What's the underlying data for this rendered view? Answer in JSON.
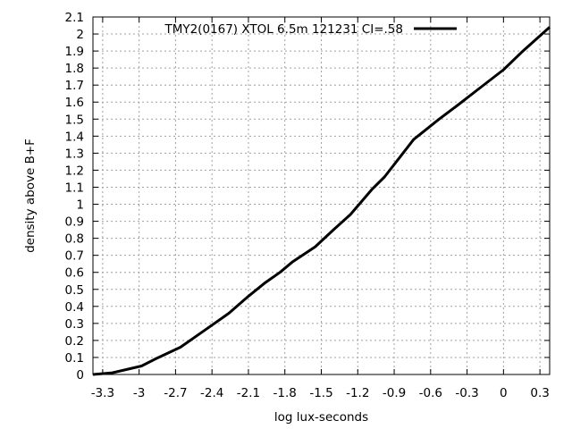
{
  "chart_data": {
    "type": "line",
    "title": "",
    "xlabel": "log lux-seconds",
    "ylabel": "density above B+F",
    "xlim": [
      -3.38,
      0.38
    ],
    "ylim": [
      0,
      2.1
    ],
    "x_ticks": [
      -3.3,
      -3,
      -2.7,
      -2.4,
      -2.1,
      -1.8,
      -1.5,
      -1.2,
      -0.9,
      -0.6,
      -0.3,
      0,
      0.3
    ],
    "x_tick_labels": [
      "-3.3",
      "-3",
      "-2.7",
      "-2.4",
      "-2.1",
      "-1.8",
      "-1.5",
      "-1.2",
      "-0.9",
      "-0.6",
      "-0.3",
      "0",
      "0.3"
    ],
    "y_ticks": [
      0,
      0.1,
      0.2,
      0.3,
      0.4,
      0.5,
      0.6,
      0.7,
      0.8,
      0.9,
      1,
      1.1,
      1.2,
      1.3,
      1.4,
      1.5,
      1.6,
      1.7,
      1.8,
      1.9,
      2,
      2.1
    ],
    "y_tick_labels": [
      "0",
      "0.1",
      "0.2",
      "0.3",
      "0.4",
      "0.5",
      "0.6",
      "0.7",
      "0.8",
      "0.9",
      "1",
      "1.1",
      "1.2",
      "1.3",
      "1.4",
      "1.5",
      "1.6",
      "1.7",
      "1.8",
      "1.9",
      "2",
      "2.1"
    ],
    "grid": true,
    "grid_style": "dotted",
    "legend_position": "top",
    "series": [
      {
        "name": "TMY2(0167) XTOL 6.5m 121231 CI=.58",
        "color": "#000000",
        "x": [
          -3.38,
          -3.22,
          -2.98,
          -2.87,
          -2.66,
          -2.42,
          -2.26,
          -2.1,
          -1.96,
          -1.84,
          -1.74,
          -1.55,
          -1.4,
          -1.26,
          -1.08,
          -0.98,
          -0.86,
          -0.74,
          -0.53,
          -0.38,
          -0.2,
          0.0,
          0.16,
          0.38
        ],
        "y": [
          0.0,
          0.01,
          0.05,
          0.09,
          0.16,
          0.28,
          0.36,
          0.46,
          0.54,
          0.6,
          0.66,
          0.75,
          0.85,
          0.94,
          1.09,
          1.16,
          1.27,
          1.38,
          1.5,
          1.58,
          1.68,
          1.79,
          1.9,
          2.04
        ]
      }
    ]
  }
}
